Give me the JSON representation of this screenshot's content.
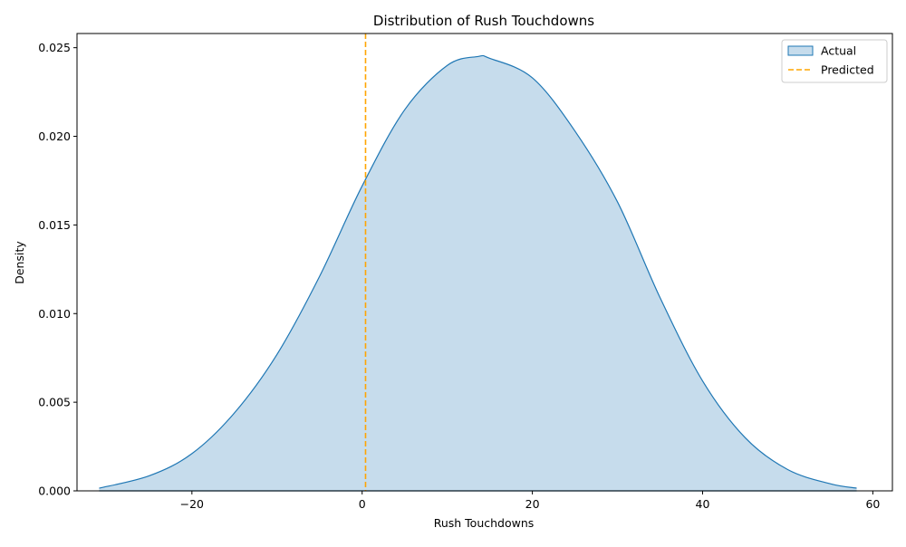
{
  "chart_data": {
    "type": "area",
    "title": "Distribution of Rush Touchdowns",
    "xlabel": "Rush Touchdowns",
    "ylabel": "Density",
    "xlim": [
      -33.5,
      62.3
    ],
    "ylim": [
      0,
      0.0258
    ],
    "xticks": [
      -20,
      0,
      20,
      40,
      60
    ],
    "xtick_labels": [
      "−20",
      "0",
      "20",
      "40",
      "60"
    ],
    "yticks": [
      0,
      0.005,
      0.01,
      0.015,
      0.02,
      0.025
    ],
    "ytick_labels": [
      "0.000",
      "0.005",
      "0.010",
      "0.015",
      "0.020",
      "0.025"
    ],
    "grid": false,
    "legend_position": "top-right",
    "series": [
      {
        "name": "Actual",
        "kind": "kde-area",
        "color": "#1f77b4",
        "fill_color": "#c6dcec",
        "x": [
          -30.9,
          -25,
          -20,
          -15,
          -10,
          -5,
          0,
          5,
          10,
          13.6,
          15,
          20,
          25,
          30,
          35,
          40,
          45,
          50,
          55,
          58.1
        ],
        "y": [
          0.00015,
          0.00085,
          0.0021,
          0.0044,
          0.0077,
          0.0121,
          0.0172,
          0.0215,
          0.024,
          0.0245,
          0.0244,
          0.0233,
          0.0203,
          0.0163,
          0.0109,
          0.0062,
          0.003,
          0.0012,
          0.0004,
          0.00015
        ]
      },
      {
        "name": "Predicted",
        "kind": "vline",
        "color": "#ffa500",
        "x": 0.4
      }
    ]
  }
}
